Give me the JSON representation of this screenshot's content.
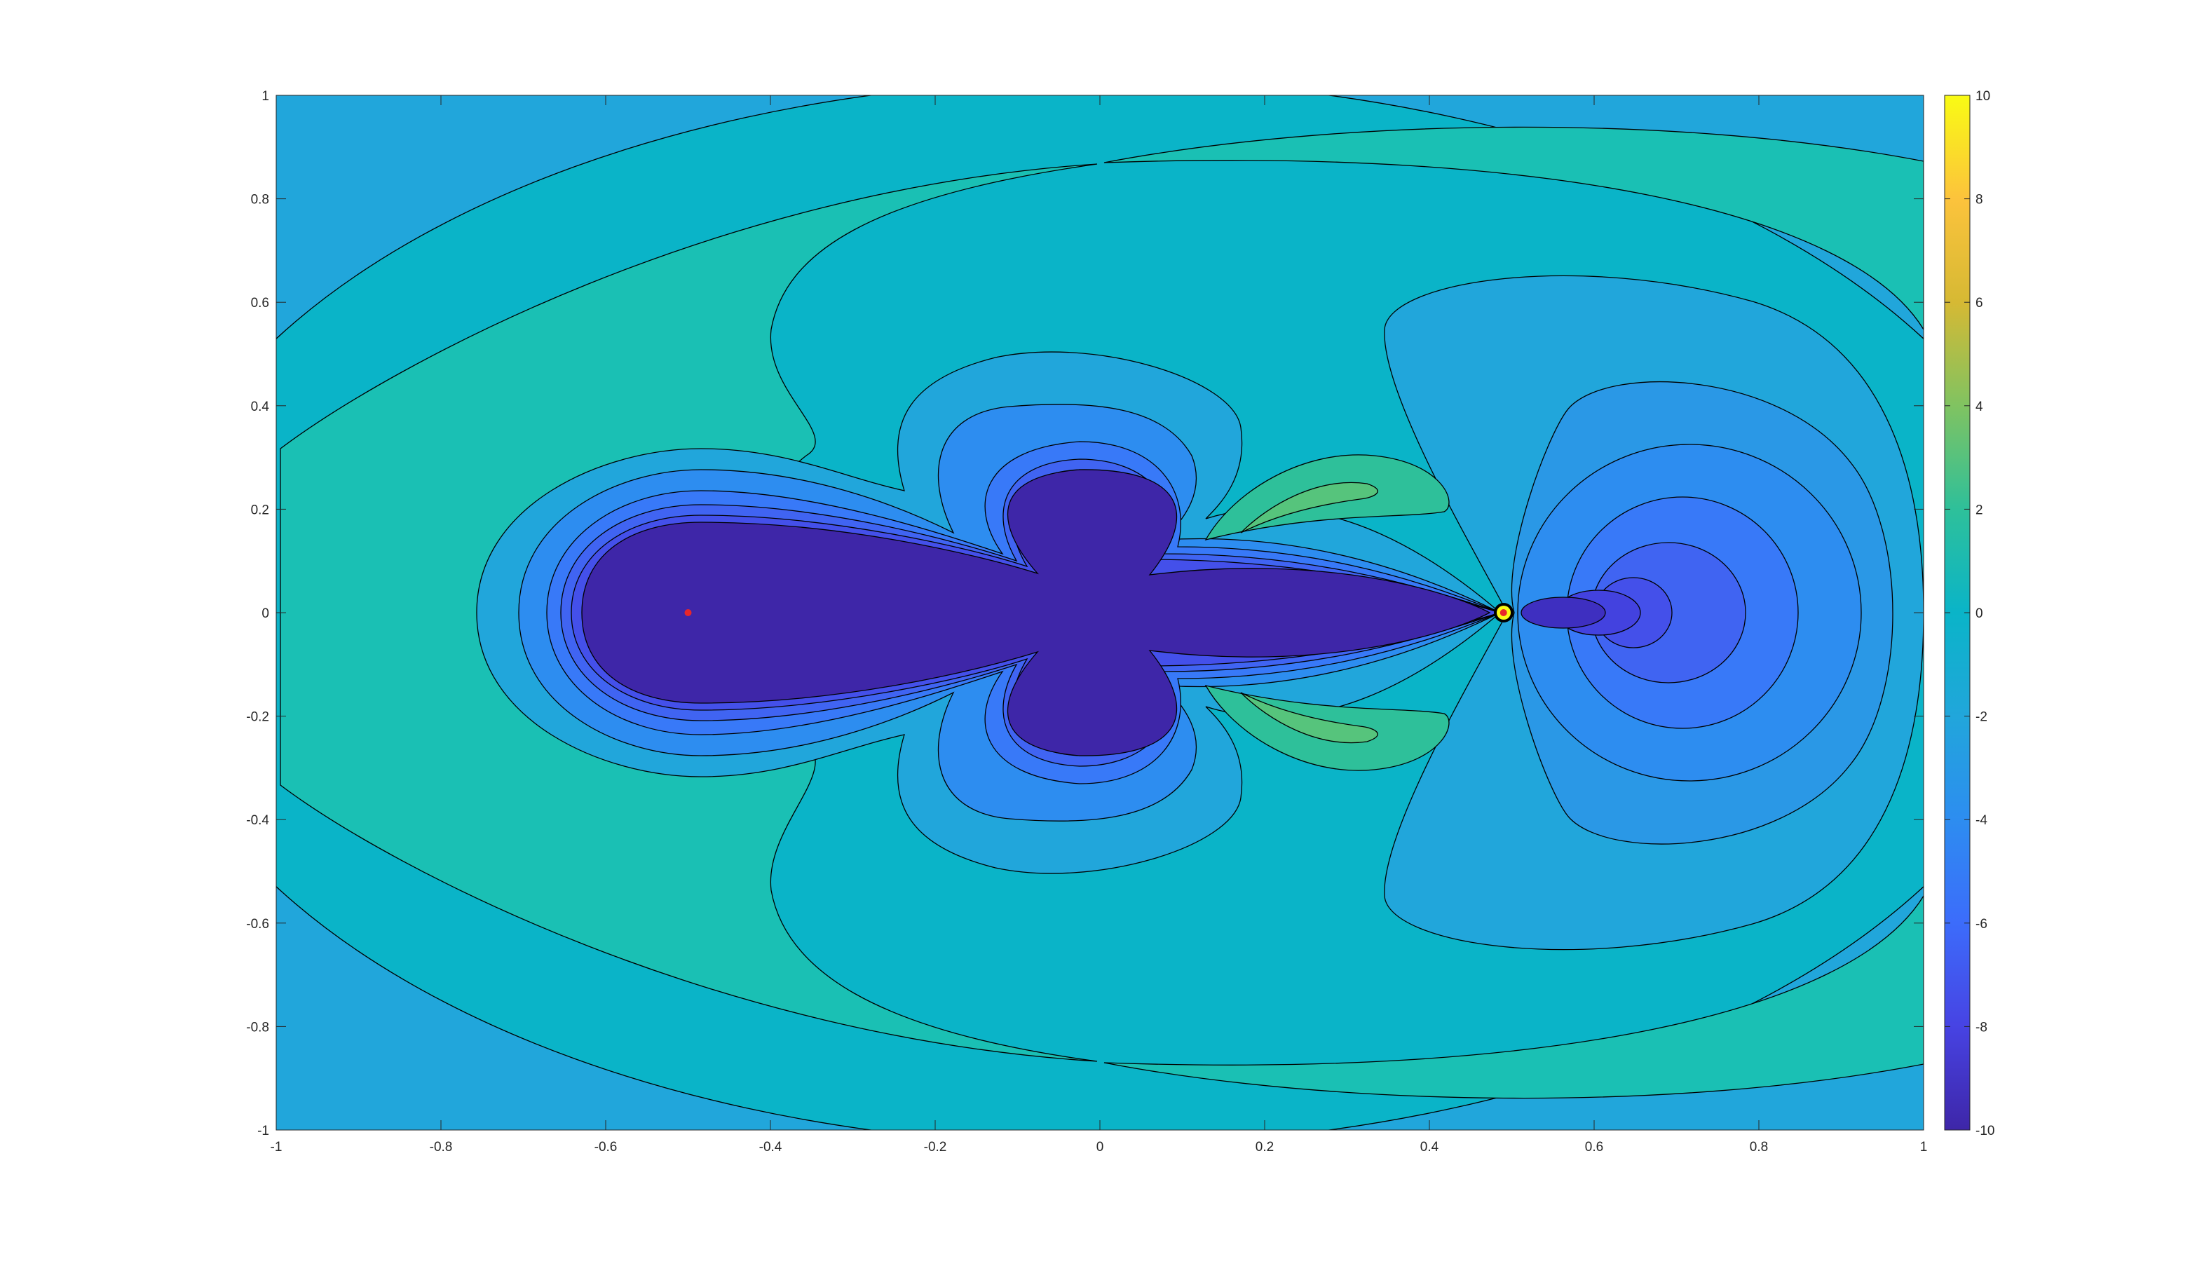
{
  "chart_data": {
    "type": "contourf",
    "title": "",
    "xlabel": "",
    "ylabel": "",
    "xlim": [
      -1,
      1
    ],
    "ylim": [
      -1,
      1
    ],
    "clim": [
      -10,
      10
    ],
    "colormap": "parula",
    "contour_line_color": "#000000",
    "x_ticks": [
      -1,
      -0.8,
      -0.6,
      -0.4,
      -0.2,
      0,
      0.2,
      0.4,
      0.6,
      0.8,
      1
    ],
    "x_tick_labels": [
      "-1",
      "-0.8",
      "-0.6",
      "-0.4",
      "-0.2",
      "0",
      "0.2",
      "0.4",
      "0.6",
      "0.8",
      "1"
    ],
    "y_ticks": [
      1,
      0.8,
      0.6,
      0.4,
      0.2,
      0,
      -0.2,
      -0.4,
      -0.6,
      -0.8,
      -1
    ],
    "y_tick_labels": [
      "1",
      "0.8",
      "0.6",
      "0.4",
      "0.2",
      "0",
      "-0.2",
      "-0.4",
      "-0.6",
      "-0.8",
      "-1"
    ],
    "colorbar": {
      "position": "right",
      "ticks": [
        10,
        8,
        6,
        4,
        2,
        0,
        -2,
        -4,
        -6,
        -8,
        -10
      ],
      "tick_labels": [
        "10",
        "8",
        "6",
        "4",
        "2",
        "0",
        "-2",
        "-4",
        "-6",
        "-8",
        "-10"
      ]
    },
    "markers": [
      {
        "x": -0.5,
        "y": 0,
        "color": "#e8262a"
      },
      {
        "x": 0.49,
        "y": 0,
        "color": "#e8262a"
      }
    ],
    "grid": false
  }
}
